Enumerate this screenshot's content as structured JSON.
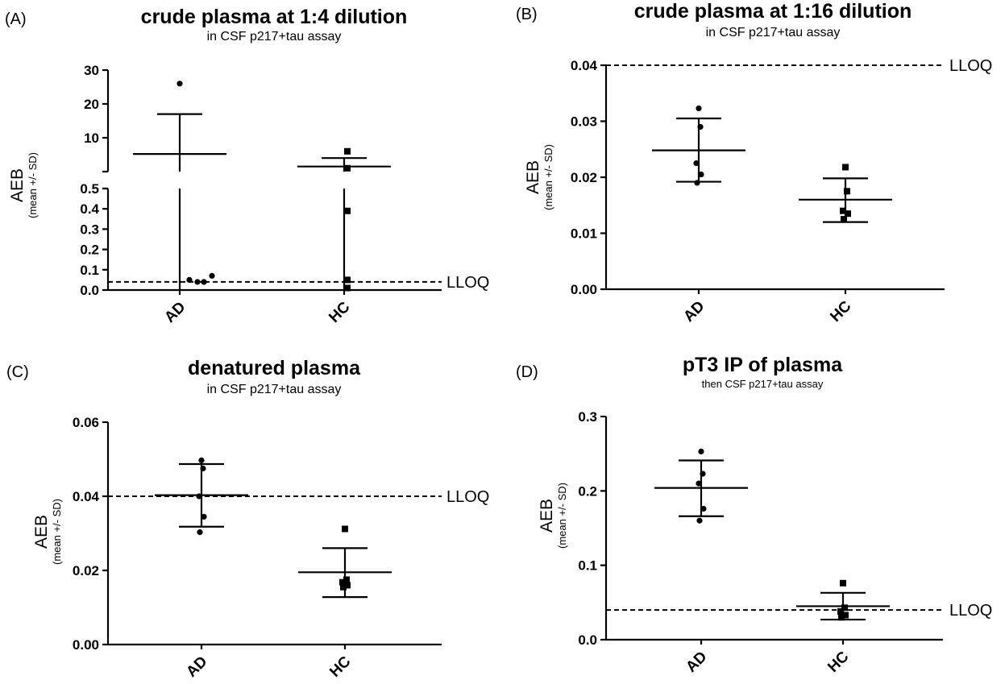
{
  "chart_data": [
    {
      "type": "scatter",
      "panel_label": "(A)",
      "title": "crude plasma at 1:4 dilution",
      "subtitle": "in CSF p217+tau assay",
      "ylabel": "AEB",
      "ylabel_sub": "(mean +/- SD)",
      "categories": [
        "AD",
        "HC"
      ],
      "axis_break": true,
      "lower_ylim": [
        0,
        0.5
      ],
      "lower_yticks": [
        "0.0",
        "0.1",
        "0.2",
        "0.3",
        "0.4",
        "0.5"
      ],
      "upper_ylim": [
        0,
        30
      ],
      "upper_yticks": [
        "10",
        "20",
        "30"
      ],
      "lloq": 0.04,
      "lloq_label": "LLOQ",
      "series": [
        {
          "category": "AD",
          "marker": "circle",
          "points": [
            26,
            0.07,
            0.05,
            0.04,
            0.04
          ],
          "mean": 5.2,
          "sd_upper": 17,
          "sd_lower": 0
        },
        {
          "category": "HC",
          "marker": "square",
          "points": [
            6,
            1.0,
            0.39,
            0.05,
            0.01
          ],
          "mean": 1.5,
          "sd_upper": 4,
          "sd_lower": 0
        }
      ]
    },
    {
      "type": "scatter",
      "panel_label": "(B)",
      "title": "crude plasma at 1:16 dilution",
      "subtitle": "in CSF p217+tau assay",
      "ylabel": "AEB",
      "ylabel_sub": "(mean +/- SD)",
      "categories": [
        "AD",
        "HC"
      ],
      "ylim": [
        0,
        0.04
      ],
      "yticks": [
        "0.00",
        "0.01",
        "0.02",
        "0.03",
        "0.04"
      ],
      "lloq": 0.04,
      "lloq_label": "LLOQ",
      "series": [
        {
          "category": "AD",
          "marker": "circle",
          "points": [
            0.0323,
            0.029,
            0.0225,
            0.0205,
            0.019
          ],
          "mean": 0.0248,
          "sd_upper": 0.0305,
          "sd_lower": 0.0192
        },
        {
          "category": "HC",
          "marker": "square",
          "points": [
            0.0218,
            0.0175,
            0.014,
            0.0135,
            0.0125
          ],
          "mean": 0.016,
          "sd_upper": 0.0198,
          "sd_lower": 0.012
        }
      ]
    },
    {
      "type": "scatter",
      "panel_label": "(C)",
      "title": "denatured plasma",
      "subtitle": "in CSF p217+tau assay",
      "ylabel": "AEB",
      "ylabel_sub": "(mean +/- SD)",
      "categories": [
        "AD",
        "HC"
      ],
      "ylim": [
        0,
        0.06
      ],
      "yticks": [
        "0.00",
        "0.02",
        "0.04",
        "0.06"
      ],
      "lloq": 0.04,
      "lloq_label": "LLOQ",
      "series": [
        {
          "category": "AD",
          "marker": "circle",
          "points": [
            0.0497,
            0.0475,
            0.04,
            0.0345,
            0.0303
          ],
          "mean": 0.0403,
          "sd_upper": 0.0487,
          "sd_lower": 0.0318
        },
        {
          "category": "HC",
          "marker": "square",
          "points": [
            0.0312,
            0.0175,
            0.0168,
            0.016,
            0.0155
          ],
          "mean": 0.0195,
          "sd_upper": 0.026,
          "sd_lower": 0.0128
        }
      ]
    },
    {
      "type": "scatter",
      "panel_label": "(D)",
      "title": "pT3 IP of plasma",
      "subtitle": "then CSF p217+tau assay",
      "ylabel": "AEB",
      "ylabel_sub": "(mean +/- SD)",
      "categories": [
        "AD",
        "HC"
      ],
      "ylim": [
        0,
        0.3
      ],
      "yticks": [
        "0.0",
        "0.1",
        "0.2",
        "0.3"
      ],
      "lloq": 0.04,
      "lloq_label": "LLOQ",
      "series": [
        {
          "category": "AD",
          "marker": "circle",
          "points": [
            0.253,
            0.223,
            0.21,
            0.176,
            0.16
          ],
          "mean": 0.204,
          "sd_upper": 0.241,
          "sd_lower": 0.166
        },
        {
          "category": "HC",
          "marker": "square",
          "points": [
            0.076,
            0.043,
            0.038,
            0.033,
            0.03
          ],
          "mean": 0.045,
          "sd_upper": 0.063,
          "sd_lower": 0.027
        }
      ]
    }
  ]
}
